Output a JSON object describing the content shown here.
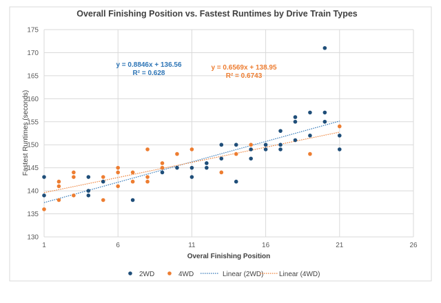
{
  "chart_data": {
    "type": "scatter",
    "title": "Overall Finishing Position vs. Fastest Runtimes by Drive Train Types",
    "xlabel": "Overal Finishing Position",
    "ylabel": "Fastest Runtimes (seconds)",
    "xlim": [
      1,
      26
    ],
    "ylim": [
      130,
      175
    ],
    "xticks": [
      1,
      6,
      11,
      16,
      21,
      26
    ],
    "yticks": [
      130,
      135,
      140,
      145,
      150,
      155,
      160,
      165,
      170,
      175
    ],
    "grid": true,
    "legend_position": "bottom",
    "series": [
      {
        "name": "2WD",
        "color": "#1f4e79",
        "points": [
          [
            1,
            143
          ],
          [
            1,
            139
          ],
          [
            4,
            143
          ],
          [
            4,
            140
          ],
          [
            4,
            139
          ],
          [
            5,
            142
          ],
          [
            7,
            138
          ],
          [
            9,
            144
          ],
          [
            10,
            145
          ],
          [
            11,
            145
          ],
          [
            11,
            143
          ],
          [
            12,
            146
          ],
          [
            12,
            145
          ],
          [
            13,
            150
          ],
          [
            13,
            147
          ],
          [
            14,
            150
          ],
          [
            14,
            142
          ],
          [
            15,
            149
          ],
          [
            15,
            147
          ],
          [
            16,
            150
          ],
          [
            16,
            149
          ],
          [
            17,
            153
          ],
          [
            17,
            150
          ],
          [
            17,
            149
          ],
          [
            18,
            156
          ],
          [
            18,
            155
          ],
          [
            18,
            151
          ],
          [
            19,
            157
          ],
          [
            19,
            152
          ],
          [
            20,
            171
          ],
          [
            20,
            157
          ],
          [
            20,
            155
          ],
          [
            21,
            152
          ],
          [
            21,
            149
          ]
        ]
      },
      {
        "name": "4WD",
        "color": "#ed7d31",
        "points": [
          [
            1,
            136
          ],
          [
            2,
            142
          ],
          [
            2,
            141
          ],
          [
            2,
            138
          ],
          [
            3,
            144
          ],
          [
            3,
            143
          ],
          [
            3,
            139
          ],
          [
            5,
            143
          ],
          [
            5,
            138
          ],
          [
            6,
            145
          ],
          [
            6,
            144
          ],
          [
            6,
            141
          ],
          [
            7,
            144
          ],
          [
            7,
            142
          ],
          [
            8,
            149
          ],
          [
            8,
            143
          ],
          [
            8,
            142
          ],
          [
            9,
            146
          ],
          [
            9,
            145
          ],
          [
            10,
            148
          ],
          [
            11,
            149
          ],
          [
            13,
            144
          ],
          [
            14,
            148
          ],
          [
            15,
            150
          ],
          [
            19,
            148
          ],
          [
            21,
            154
          ]
        ]
      }
    ],
    "trendlines": [
      {
        "name": "Linear (2WD)",
        "series": "2WD",
        "slope": 0.8846,
        "intercept": 136.56,
        "equation": "y = 0.8846x + 136.56",
        "r2": "R² = 0.628",
        "x_range": [
          1,
          21
        ],
        "color": "#2e75b6",
        "label_color": "#2e75b6"
      },
      {
        "name": "Linear (4WD)",
        "series": "4WD",
        "slope": 0.6569,
        "intercept": 138.95,
        "equation": "y = 0.6569x + 138.95",
        "r2": "R² = 0.6743",
        "x_range": [
          1,
          21
        ],
        "color": "#ed7d31",
        "label_color": "#ed7d31"
      }
    ]
  }
}
